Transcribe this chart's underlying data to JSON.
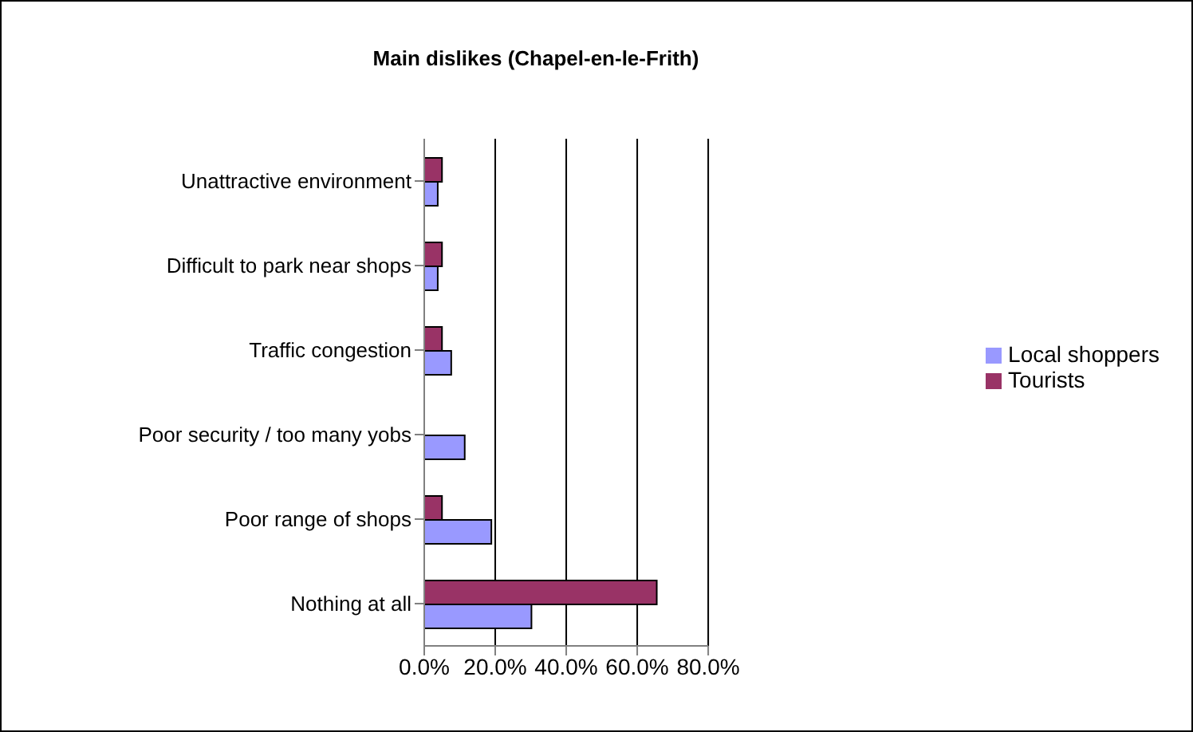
{
  "chart_data": {
    "type": "bar",
    "orientation": "horizontal",
    "title": "Main dislikes (Chapel-en-le-Frith)",
    "categories": [
      "Unattractive environment",
      "Difficult to park near shops",
      "Traffic congestion",
      "Poor security / too many yobs",
      "Poor range of shops",
      "Nothing at all"
    ],
    "series": [
      {
        "name": "Tourists",
        "color": "#993366",
        "values": [
          5,
          5,
          5,
          0,
          5,
          65.5
        ]
      },
      {
        "name": "Local shoppers",
        "color": "#9999ff",
        "values": [
          3.8,
          3.8,
          7.6,
          11.4,
          18.9,
          30.2
        ]
      }
    ],
    "xlim": [
      0,
      80
    ],
    "xticks": [
      {
        "value": 0,
        "label": "0.0%"
      },
      {
        "value": 20,
        "label": "20.0%"
      },
      {
        "value": 40,
        "label": "40.0%"
      },
      {
        "value": 60,
        "label": "60.0%"
      },
      {
        "value": 80,
        "label": "80.0%"
      }
    ],
    "grid": "x",
    "legend": "right"
  }
}
